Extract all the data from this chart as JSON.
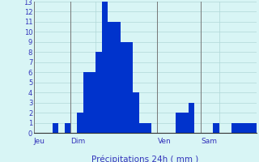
{
  "bar_color": "#0033cc",
  "bg_color": "#d8f5f5",
  "grid_color": "#b0d8d8",
  "axis_label_color": "#3333bb",
  "tick_color": "#3333bb",
  "ylim": [
    0,
    13
  ],
  "yticks": [
    0,
    1,
    2,
    3,
    4,
    5,
    6,
    7,
    8,
    9,
    10,
    11,
    12,
    13
  ],
  "values": [
    0,
    0,
    0,
    1,
    0,
    1,
    0,
    2,
    6,
    6,
    8,
    13,
    11,
    11,
    9,
    9,
    4,
    1,
    1,
    0,
    0,
    0,
    0,
    2,
    2,
    3,
    0,
    0,
    0,
    1,
    0,
    0,
    1,
    1,
    1,
    1
  ],
  "num_bars": 36,
  "day_labels": [
    "Jeu",
    "Dim",
    "Ven",
    "Sam"
  ],
  "xlabel": "Précipitations 24h ( mm )",
  "xlabel_fontsize": 7.5,
  "tick_fontsize": 6.0,
  "day_label_fontsize": 6.5
}
